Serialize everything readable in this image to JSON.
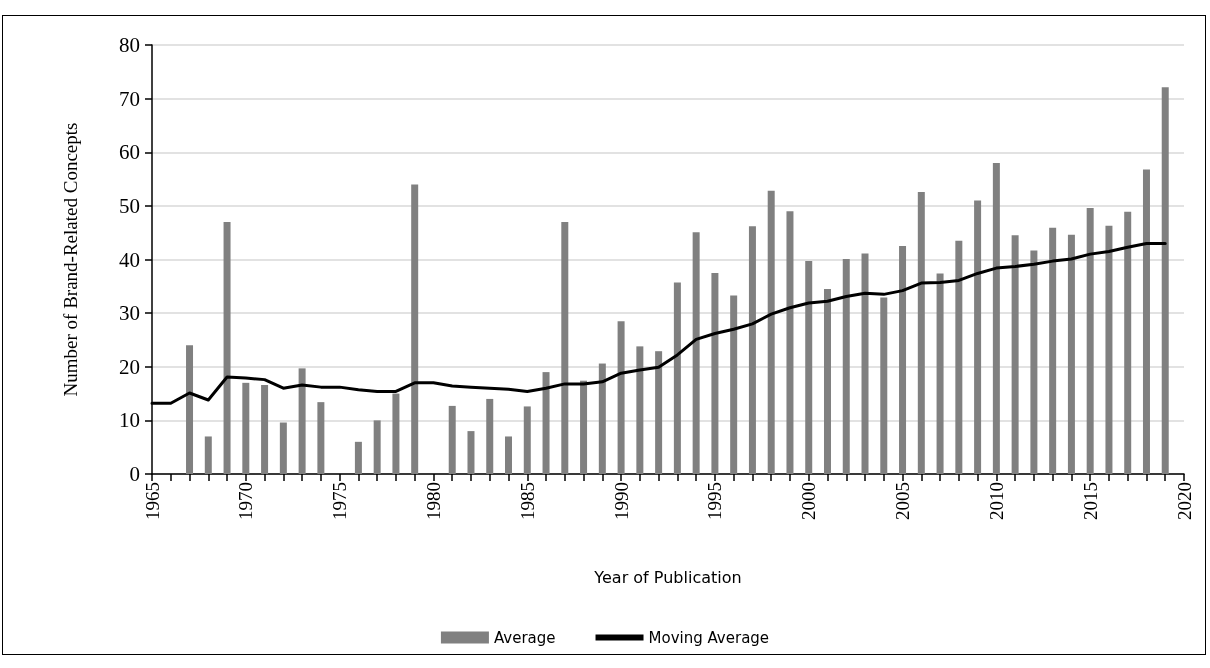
{
  "chart_data": {
    "type": "bar",
    "xlabel": "Year of Publication",
    "ylabel": "Number of Brand-Related Concepts",
    "x": [
      1965,
      1966,
      1967,
      1968,
      1969,
      1970,
      1971,
      1972,
      1973,
      1974,
      1975,
      1976,
      1977,
      1978,
      1979,
      1980,
      1981,
      1982,
      1983,
      1984,
      1985,
      1986,
      1987,
      1988,
      1989,
      1990,
      1991,
      1992,
      1993,
      1994,
      1995,
      1996,
      1997,
      1998,
      1999,
      2000,
      2001,
      2002,
      2003,
      2004,
      2005,
      2006,
      2007,
      2008,
      2009,
      2010,
      2011,
      2012,
      2013,
      2014,
      2015,
      2016,
      2017,
      2018,
      2019
    ],
    "series": [
      {
        "name": "Average",
        "color": "#808080",
        "values": [
          null,
          null,
          24,
          7,
          47,
          17,
          16.6,
          9.6,
          19.7,
          13.4,
          null,
          6,
          10,
          15,
          54,
          null,
          12.7,
          8,
          14,
          7,
          12.6,
          19,
          47,
          17.4,
          20.6,
          28.5,
          23.8,
          22.9,
          35.7,
          45.1,
          37.5,
          33.3,
          46.2,
          52.8,
          49,
          39.7,
          34.5,
          40.1,
          41.1,
          32.9,
          42.5,
          52.6,
          37.4,
          43.5,
          51,
          58,
          44.5,
          41.7,
          45.9,
          44.6,
          49.6,
          46.3,
          48.9,
          56.8,
          72.1
        ]
      },
      {
        "name": "Moving Average",
        "type": "line",
        "color": "#000000",
        "values": [
          13.2,
          13.2,
          15.1,
          13.8,
          18.1,
          17.9,
          17.6,
          16,
          16.6,
          16.2,
          16.2,
          15.7,
          15.4,
          15.4,
          17,
          17,
          16.4,
          16.2,
          16,
          15.8,
          15.4,
          16,
          16.8,
          16.8,
          17.2,
          18.8,
          19.4,
          19.9,
          22.2,
          25.1,
          26.2,
          27,
          28,
          29.8,
          31,
          31.9,
          32.2,
          33.1,
          33.7,
          33.5,
          34.2,
          35.6,
          35.7,
          36.1,
          37.4,
          38.4,
          38.7,
          39.1,
          39.7,
          40.1,
          41,
          41.5,
          42.3,
          43,
          43
        ]
      }
    ],
    "xlim": [
      1965,
      2020
    ],
    "xticks": [
      1965,
      {
        "value": 1966,
        "label": null
      },
      {
        "value": 1967,
        "label": null
      },
      {
        "value": 1968,
        "label": null
      },
      {
        "value": 1969,
        "label": null
      },
      1970,
      {
        "value": 1971,
        "label": null
      },
      {
        "value": 1972,
        "label": null
      },
      {
        "value": 1973,
        "label": null
      },
      {
        "value": 1974,
        "label": null
      },
      1975,
      {
        "value": 1976,
        "label": null
      },
      {
        "value": 1977,
        "label": null
      },
      {
        "value": 1978,
        "label": null
      },
      {
        "value": 1979,
        "label": null
      },
      1980,
      {
        "value": 1981,
        "label": null
      },
      {
        "value": 1982,
        "label": null
      },
      {
        "value": 1983,
        "label": null
      },
      {
        "value": 1984,
        "label": null
      },
      1985,
      {
        "value": 1986,
        "label": null
      },
      {
        "value": 1987,
        "label": null
      },
      {
        "value": 1988,
        "label": null
      },
      {
        "value": 1989,
        "label": null
      },
      1990,
      {
        "value": 1991,
        "label": null
      },
      {
        "value": 1992,
        "label": null
      },
      {
        "value": 1993,
        "label": null
      },
      {
        "value": 1994,
        "label": null
      },
      1995,
      {
        "value": 1996,
        "label": null
      },
      {
        "value": 1997,
        "label": null
      },
      {
        "value": 1998,
        "label": null
      },
      {
        "value": 1999,
        "label": null
      },
      2000,
      {
        "value": 2001,
        "label": null
      },
      {
        "value": 2002,
        "label": null
      },
      {
        "value": 2003,
        "label": null
      },
      {
        "value": 2004,
        "label": null
      },
      2005,
      {
        "value": 2006,
        "label": null
      },
      {
        "value": 2007,
        "label": null
      },
      {
        "value": 2008,
        "label": null
      },
      {
        "value": 2009,
        "label": null
      },
      2010,
      {
        "value": 2011,
        "label": null
      },
      {
        "value": 2012,
        "label": null
      },
      {
        "value": 2013,
        "label": null
      },
      {
        "value": 2014,
        "label": null
      },
      2015,
      {
        "value": 2016,
        "label": null
      },
      {
        "value": 2017,
        "label": null
      },
      {
        "value": 2018,
        "label": null
      },
      {
        "value": 2019,
        "label": null
      },
      2020
    ],
    "ylim": [
      0,
      80
    ],
    "yticks": [
      0,
      10,
      20,
      30,
      40,
      50,
      60,
      70,
      80
    ],
    "grid": "y",
    "legend": "bottom",
    "marker": "none",
    "line_style": "solid"
  }
}
